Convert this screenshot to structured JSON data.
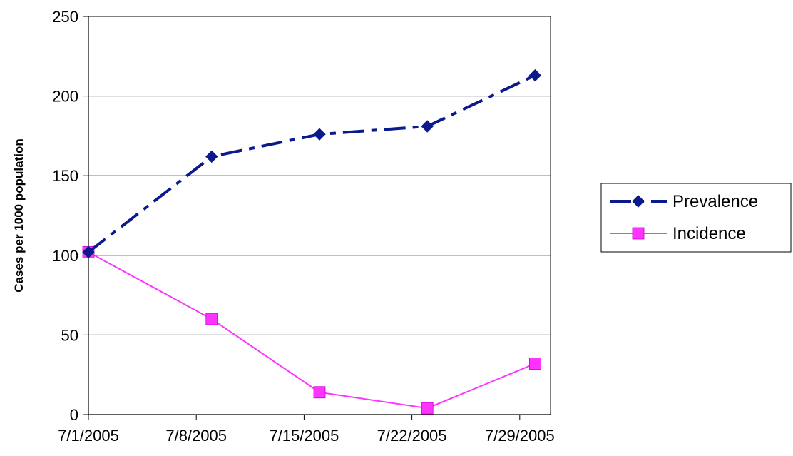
{
  "chart_data": {
    "type": "line",
    "title": "",
    "xlabel": "",
    "ylabel": "Cases per 1000 population",
    "categories": [
      "7/1/2005",
      "7/8/2005",
      "7/15/2005",
      "7/22/2005",
      "7/29/2005"
    ],
    "ylim": [
      0,
      250
    ],
    "yticks": [
      "0",
      "50",
      "100",
      "150",
      "200",
      "250"
    ],
    "grid": true,
    "legend_position": "right",
    "series": [
      {
        "name": "Prevalence",
        "color": "#0A1A8C",
        "marker": "diamond",
        "line_style": "dash-dot",
        "x": [
          "7/1/2005",
          "7/9/2005",
          "7/16/2005",
          "7/23/2005",
          "7/30/2005"
        ],
        "values": [
          102,
          162,
          176,
          181,
          213
        ]
      },
      {
        "name": "Incidence",
        "color": "#FF33FF",
        "marker": "square",
        "line_style": "solid",
        "x": [
          "7/1/2005",
          "7/9/2005",
          "7/16/2005",
          "7/23/2005",
          "7/30/2005"
        ],
        "values": [
          102,
          60,
          14,
          4,
          32
        ]
      }
    ]
  }
}
